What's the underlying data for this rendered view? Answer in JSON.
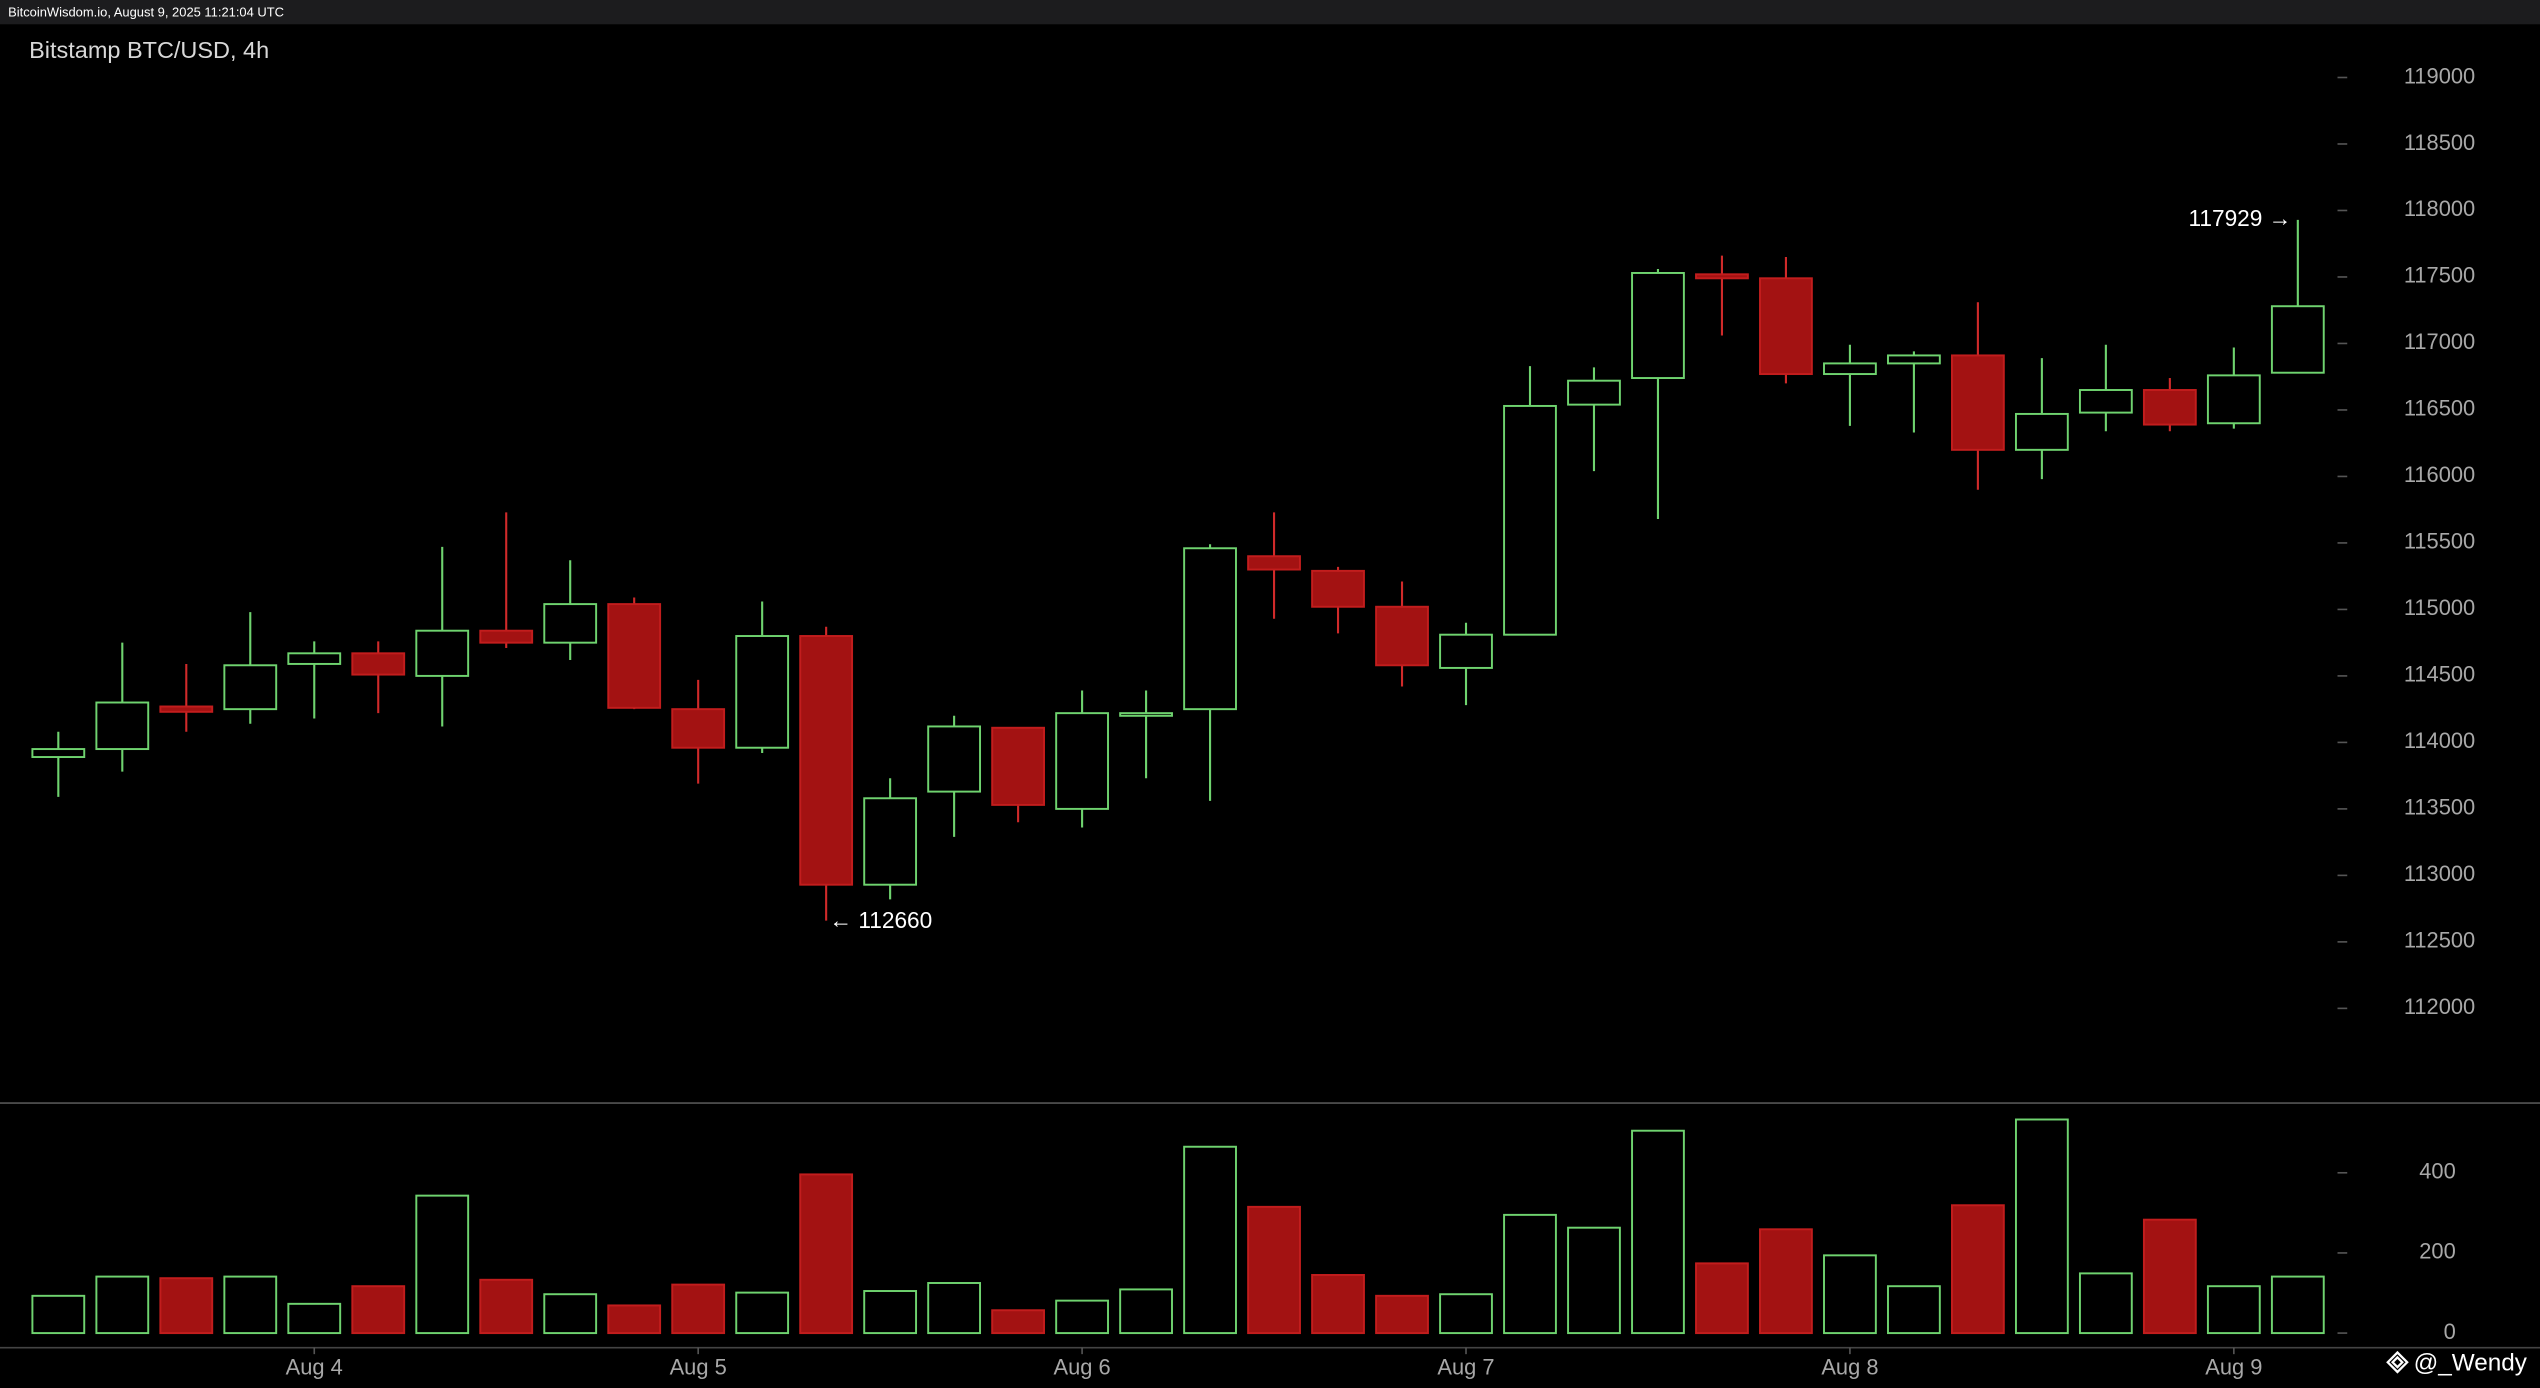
{
  "header": {
    "source": "BitcoinWisdom.io, August 9, 2025 11:21:04 UTC"
  },
  "watermark": "@_Wendy",
  "chart_data": [
    {
      "type": "candlestick",
      "title": "Bitstamp BTC/USD, 4h",
      "open": [
        113890,
        113950,
        114270,
        114250,
        114590,
        114670,
        114500,
        114840,
        114750,
        115040,
        114250,
        113960,
        114800,
        112930,
        113630,
        114110,
        113500,
        114200,
        114250,
        115400,
        115290,
        115020,
        114560,
        114810,
        116540,
        116740,
        117520,
        117490,
        116770,
        116850,
        116910,
        116200,
        116480,
        116650,
        116400,
        116780
      ],
      "high": [
        114080,
        114750,
        114590,
        114980,
        114760,
        114760,
        115470,
        115730,
        115370,
        115090,
        114470,
        115060,
        114870,
        113730,
        114200,
        114110,
        114390,
        114390,
        115490,
        115730,
        115320,
        115210,
        114900,
        116830,
        116820,
        117560,
        117660,
        117650,
        116990,
        116940,
        117310,
        116890,
        116990,
        116740,
        116970,
        117929
      ],
      "low": [
        113590,
        113780,
        114080,
        114140,
        114180,
        114220,
        114120,
        114710,
        114620,
        114250,
        113690,
        113920,
        112660,
        112820,
        113290,
        113400,
        113360,
        113730,
        113560,
        114930,
        114820,
        114420,
        114280,
        114810,
        116040,
        115680,
        117060,
        116700,
        116380,
        116330,
        115900,
        115980,
        116340,
        116340,
        116360,
        116780
      ],
      "close": [
        113950,
        114300,
        114230,
        114580,
        114670,
        114510,
        114840,
        114750,
        115040,
        114260,
        113960,
        114800,
        112930,
        113580,
        114120,
        113530,
        114220,
        114220,
        115460,
        115300,
        115020,
        114580,
        114810,
        116530,
        116720,
        117530,
        117490,
        116770,
        116850,
        116910,
        116200,
        116470,
        116650,
        116390,
        116760,
        117280
      ],
      "ylim": [
        111300,
        119400
      ],
      "yticks": [
        112000,
        112500,
        113000,
        113500,
        114000,
        114500,
        115000,
        115500,
        116000,
        116500,
        117000,
        117500,
        118000,
        118500,
        119000
      ],
      "up_color": "#6fd36f",
      "down_color": "#a31212",
      "annotations": [
        {
          "text": "117929 →"
        },
        {
          "text": "← 112660"
        }
      ]
    },
    {
      "type": "bar",
      "categories": [
        null,
        null,
        null,
        null,
        "Aug 4",
        null,
        null,
        null,
        null,
        null,
        "Aug 5",
        null,
        null,
        null,
        null,
        null,
        "Aug 6",
        null,
        null,
        null,
        null,
        null,
        "Aug 7",
        null,
        null,
        null,
        null,
        null,
        "Aug 8",
        null,
        null,
        null,
        null,
        null,
        "Aug 9",
        null
      ],
      "values": [
        93,
        141,
        137,
        141,
        73,
        117,
        343,
        133,
        97,
        69,
        121,
        101,
        396,
        105,
        125,
        57,
        81,
        109,
        465,
        315,
        145,
        93,
        97,
        295,
        263,
        505,
        174,
        259,
        194,
        117,
        319,
        533,
        149,
        283,
        117,
        141
      ],
      "ylim": [
        0,
        578
      ],
      "yticks": [
        0,
        200,
        400
      ]
    }
  ]
}
